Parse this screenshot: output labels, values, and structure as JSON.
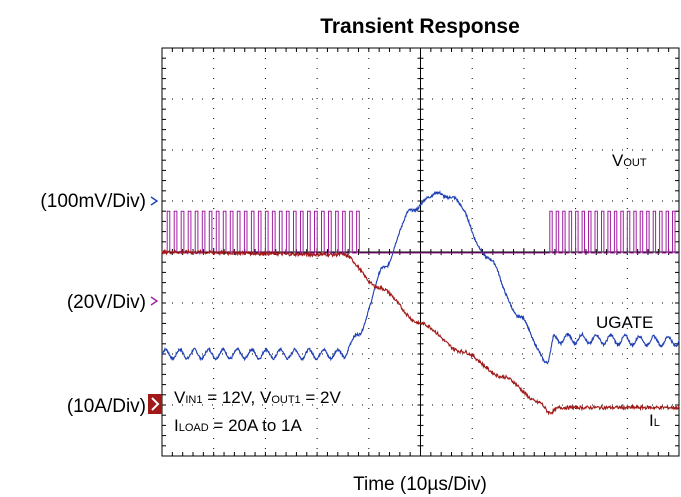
{
  "chart_data": {
    "type": "line",
    "title": "Transient Response",
    "xlabel": "Time (10µs/Div)",
    "grid": true,
    "x_divisions": 10,
    "y_divisions": 8,
    "x_unit_per_div": "10µs",
    "channel_scales": [
      "(100mV/Div)",
      "(20V/Div)",
      "(10A/Div)"
    ],
    "annotations": {
      "line1": {
        "vin": "V",
        "vin_sub": "IN1",
        "vin_val": " = 12V, ",
        "vout": "V",
        "vout_sub": "OUT1",
        "vout_val": " = 2V"
      },
      "line2": {
        "iload": "I",
        "iload_sub": "LOAD",
        "iload_val": " = 20A to 1A"
      }
    },
    "series": [
      {
        "name": "VOUT",
        "label_main": "V",
        "label_sub": "OUT",
        "color": "#1f3fb4",
        "unit": "div",
        "x": [
          0,
          3.5,
          3.8,
          4.3,
          4.8,
          5.3,
          5.65,
          6.3,
          6.9,
          7.45,
          7.6,
          10
        ],
        "y": [
          2.0,
          2.0,
          2.4,
          3.7,
          4.8,
          5.15,
          5.05,
          3.9,
          2.75,
          1.85,
          2.3,
          2.25
        ],
        "ripple_div": 0.09
      },
      {
        "name": "UGATE",
        "color": "#a020a0",
        "unit": "div",
        "switching_intervals": [
          [
            0.1,
            3.9
          ],
          [
            7.5,
            10
          ]
        ],
        "pulse_count_first": 28,
        "pulse_count_second": 20,
        "high_div": 4.8,
        "low_div": 3.98
      },
      {
        "name": "IL",
        "label_main": "I",
        "label_sub": "L",
        "color": "#a01818",
        "unit": "div",
        "x": [
          0,
          3.5,
          4.2,
          5.0,
          5.8,
          6.6,
          7.3,
          7.5,
          7.7,
          10
        ],
        "y": [
          4.0,
          3.95,
          3.3,
          2.6,
          2.05,
          1.55,
          1.05,
          0.85,
          0.95,
          0.95
        ]
      }
    ]
  }
}
